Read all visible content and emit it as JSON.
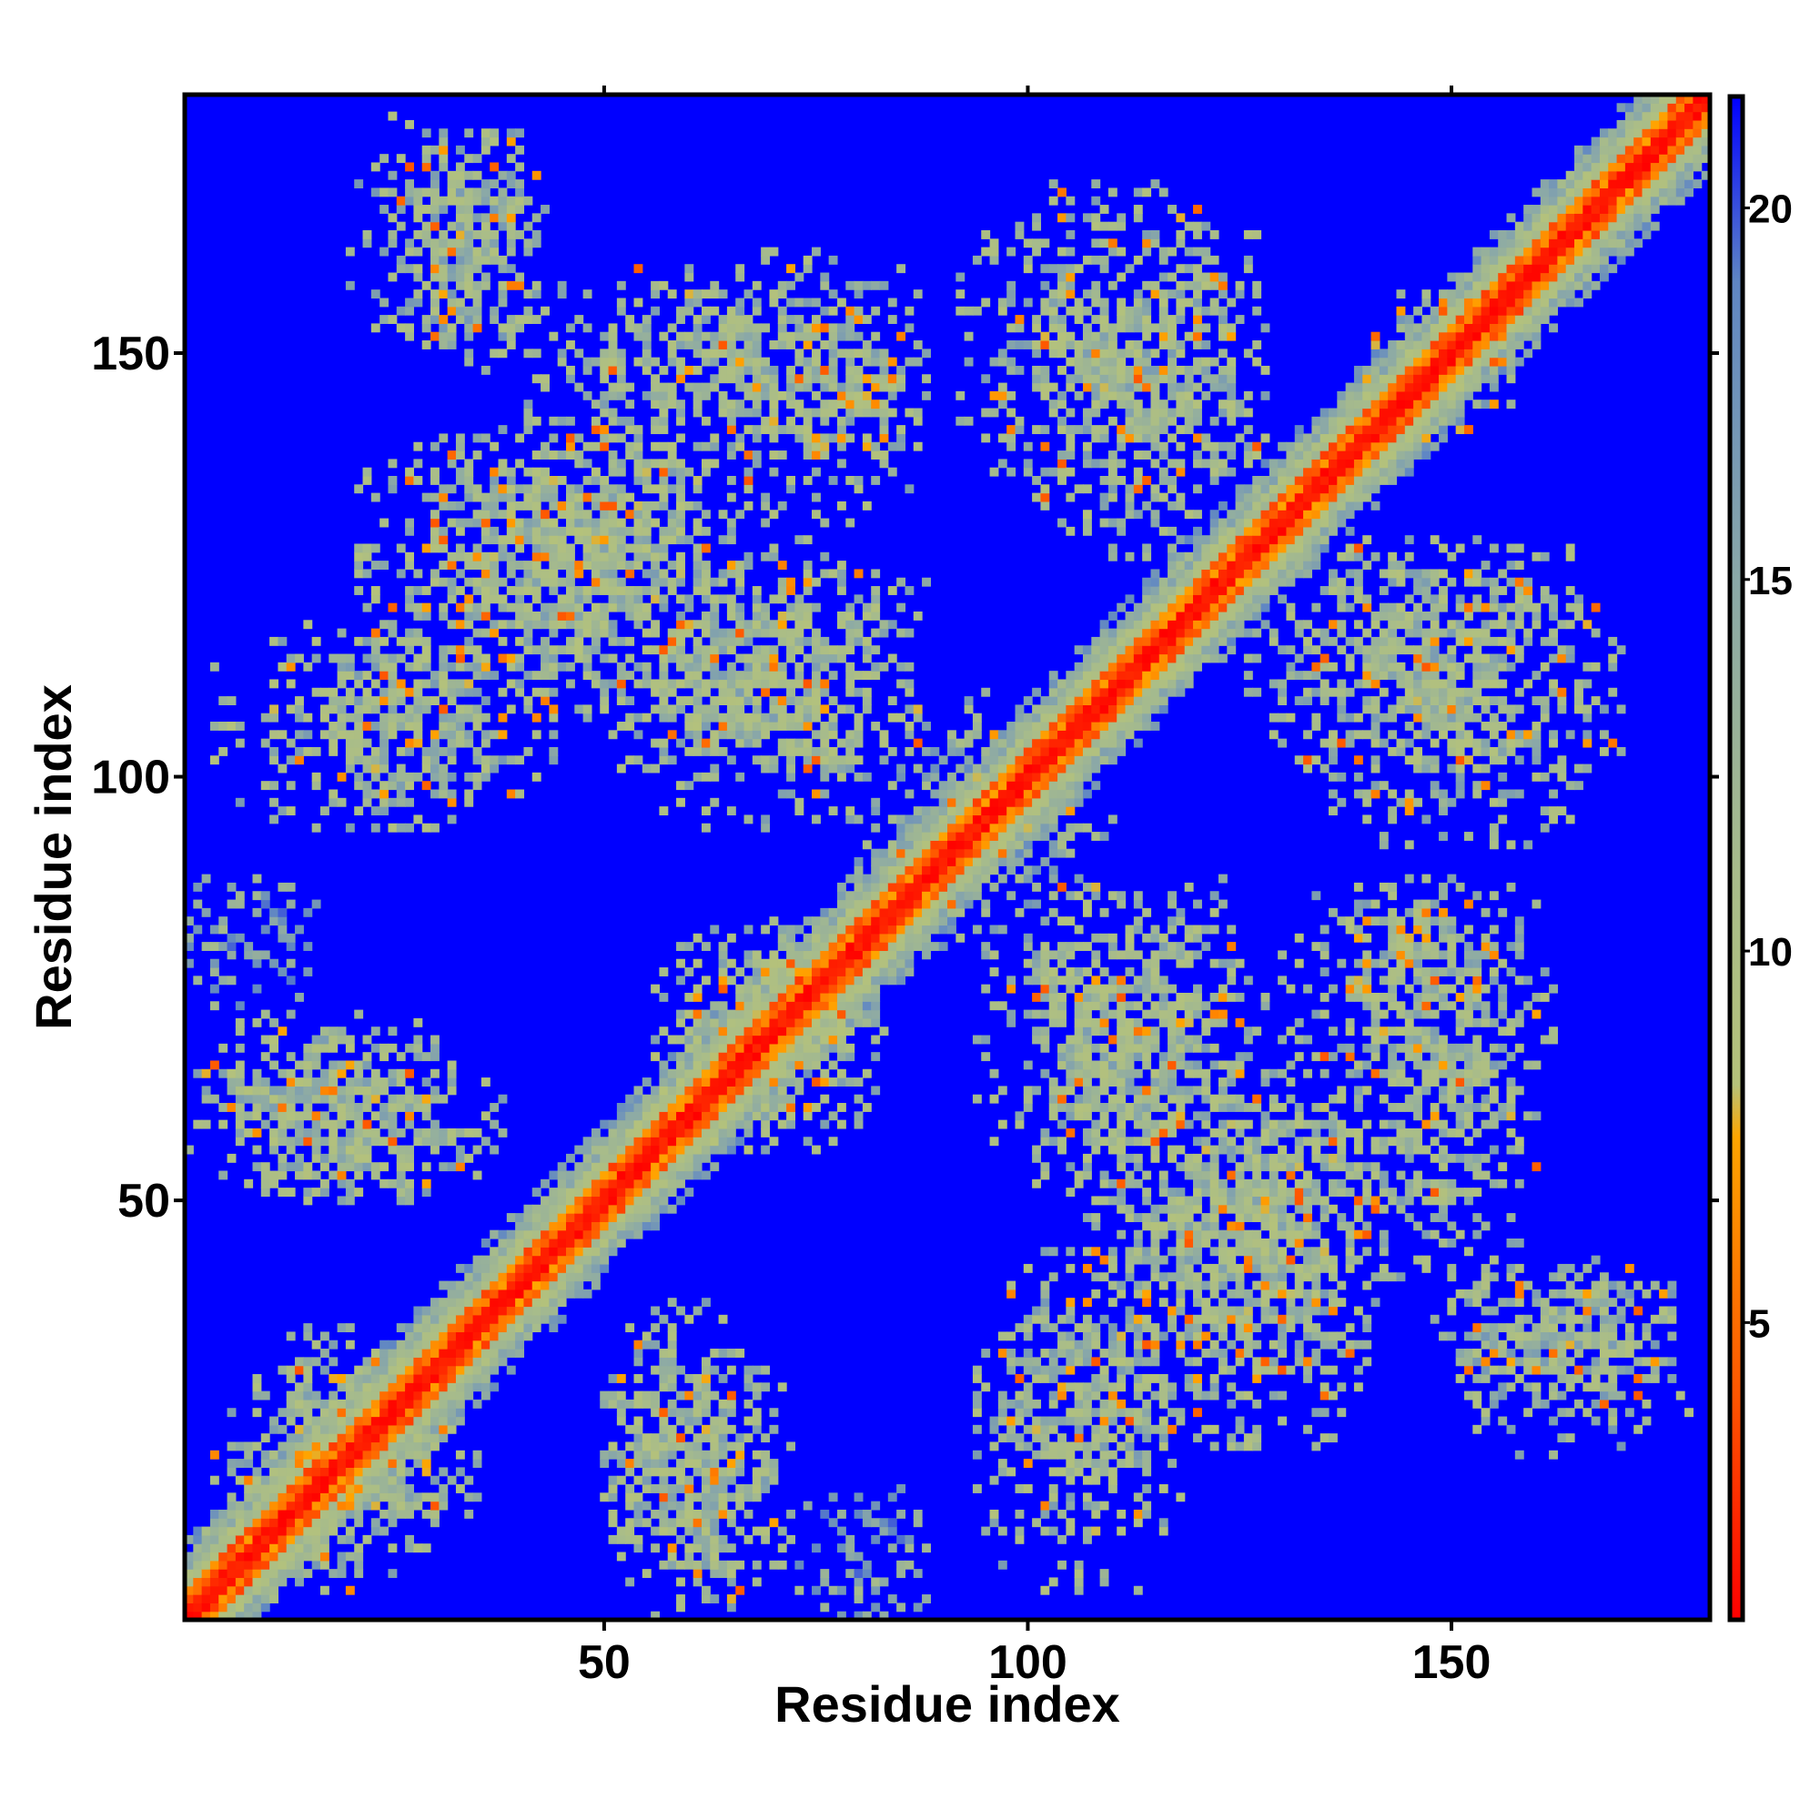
{
  "chart_data": {
    "type": "heatmap",
    "title": "",
    "xlabel": "Residue index",
    "ylabel": "Residue index",
    "n_residues": 180,
    "xlim": [
      1,
      180
    ],
    "ylim": [
      1,
      180
    ],
    "x_ticks": [
      50,
      100,
      150
    ],
    "x_tick_labels": [
      "50",
      "100",
      "150"
    ],
    "y_ticks": [
      50,
      100,
      150
    ],
    "y_tick_labels": [
      "50",
      "100",
      "150"
    ],
    "colorbar": {
      "range": [
        1,
        21.5
      ],
      "ticks": [
        5,
        10,
        15,
        20
      ],
      "tick_labels": [
        "5",
        "10",
        "15",
        "20"
      ],
      "placement": "right",
      "stops": [
        {
          "value": 1,
          "color": "#ff0000"
        },
        {
          "value": 4,
          "color": "#ff5500"
        },
        {
          "value": 7.5,
          "color": "#ffa500"
        },
        {
          "value": 8.2,
          "color": "#b5c27a"
        },
        {
          "value": 11,
          "color": "#a8bc8a"
        },
        {
          "value": 15,
          "color": "#8aa8a8"
        },
        {
          "value": 19,
          "color": "#5f86c4"
        },
        {
          "value": 21.5,
          "color": "#0000ff"
        }
      ]
    },
    "background_color": "#0000ff",
    "diagonal": {
      "core_value": 1,
      "near_value": 5,
      "band_value": 12
    },
    "contact_blocks": [
      {
        "x": [
          10,
          35
        ],
        "y": [
          6,
          30
        ],
        "mean": 13,
        "density": 0.55
      },
      {
        "x": [
          3,
          30
        ],
        "y": [
          8,
          22
        ],
        "mean": 13,
        "density": 0.5
      },
      {
        "x": [
          50,
          68
        ],
        "y": [
          6,
          38
        ],
        "mean": 12.5,
        "density": 0.6
      },
      {
        "x": [
          72,
          90
        ],
        "y": [
          6,
          16
        ],
        "mean": 16,
        "density": 0.35
      },
      {
        "x": [
          96,
          120
        ],
        "y": [
          18,
          38
        ],
        "mean": 13,
        "density": 0.5
      },
      {
        "x": [
          107,
          143
        ],
        "y": [
          30,
          62
        ],
        "mean": 12.5,
        "density": 0.55
      },
      {
        "x": [
          148,
          176
        ],
        "y": [
          26,
          43
        ],
        "mean": 13,
        "density": 0.55
      },
      {
        "x": [
          94,
          130
        ],
        "y": [
          52,
          88
        ],
        "mean": 12.5,
        "density": 0.5
      },
      {
        "x": [
          130,
          162
        ],
        "y": [
          62,
          88
        ],
        "mean": 12.5,
        "density": 0.5
      },
      {
        "x": [
          56,
          80
        ],
        "y": [
          58,
          84
        ],
        "mean": 12,
        "density": 0.6
      },
      {
        "x": [
          1,
          32
        ],
        "y": [
          50,
          72
        ],
        "mean": 12.5,
        "density": 0.55
      },
      {
        "x": [
          1,
          12
        ],
        "y": [
          73,
          90
        ],
        "mean": 15,
        "density": 0.4
      },
      {
        "x": [
          4,
          44
        ],
        "y": [
          94,
          118
        ],
        "mean": 12.5,
        "density": 0.55
      },
      {
        "x": [
          48,
          88
        ],
        "y": [
          100,
          122
        ],
        "mean": 12.5,
        "density": 0.55
      },
      {
        "x": [
          20,
          66
        ],
        "y": [
          116,
          140
        ],
        "mean": 12,
        "density": 0.6
      },
      {
        "x": [
          40,
          88
        ],
        "y": [
          136,
          160
        ],
        "mean": 12.5,
        "density": 0.55
      },
      {
        "x": [
          20,
          42
        ],
        "y": [
          151,
          178
        ],
        "mean": 13,
        "density": 0.5
      },
      {
        "x": [
          92,
          128
        ],
        "y": [
          132,
          170
        ],
        "mean": 12.5,
        "density": 0.5
      },
      {
        "x": [
          126,
          164
        ],
        "y": [
          98,
          128
        ],
        "mean": 12.5,
        "density": 0.55
      },
      {
        "x": [
          140,
          160
        ],
        "y": [
          140,
          158
        ],
        "mean": 15,
        "density": 0.35
      },
      {
        "x": [
          84,
          100
        ],
        "y": [
          80,
          110
        ],
        "mean": 14,
        "density": 0.4
      }
    ]
  }
}
